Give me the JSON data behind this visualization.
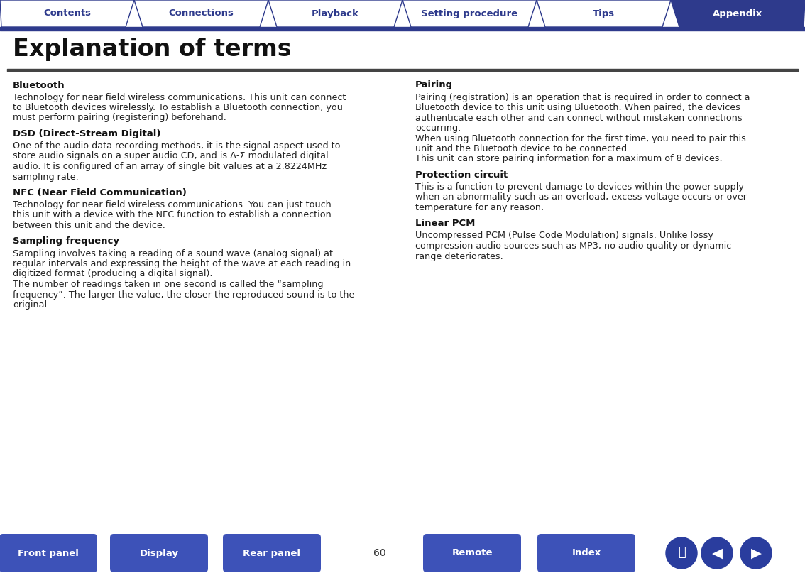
{
  "title": "Explanation of terms",
  "bg_color": "#ffffff",
  "title_color": "#111111",
  "tab_color_inactive_bg": "#ffffff",
  "tab_color_inactive_text": "#2e3a8c",
  "tab_color_active_bg": "#2e3a8c",
  "tab_color_active_text": "#ffffff",
  "tab_border_color": "#2e3a8c",
  "tabs": [
    "Contents",
    "Connections",
    "Playback",
    "Setting procedure",
    "Tips",
    "Appendix"
  ],
  "active_tab": 5,
  "header_line_color": "#444444",
  "bottom_btn_color": "#3d52b8",
  "bottom_btn_text_color": "#ffffff",
  "page_number": "60",
  "left_sections": [
    {
      "heading": "Bluetooth",
      "body": "Technology for near field wireless communications. This unit can connect\nto Bluetooth devices wirelessly. To establish a Bluetooth connection, you\nmust perform pairing (registering) beforehand."
    },
    {
      "heading": "DSD (Direct-Stream Digital)",
      "body": "One of the audio data recording methods, it is the signal aspect used to\nstore audio signals on a super audio CD, and is Δ-Σ modulated digital\naudio. It is configured of an array of single bit values at a 2.8224MHz\nsampling rate."
    },
    {
      "heading": "NFC (Near Field Communication)",
      "body": "Technology for near field wireless communications. You can just touch\nthis unit with a device with the NFC function to establish a connection\nbetween this unit and the device."
    },
    {
      "heading": "Sampling frequency",
      "body": "Sampling involves taking a reading of a sound wave (analog signal) at\nregular intervals and expressing the height of the wave at each reading in\ndigitized format (producing a digital signal).\nThe number of readings taken in one second is called the “sampling\nfrequency”. The larger the value, the closer the reproduced sound is to the\noriginal."
    }
  ],
  "right_sections": [
    {
      "heading": "Pairing",
      "body": "Pairing (registration) is an operation that is required in order to connect a\nBluetooth device to this unit using Bluetooth. When paired, the devices\nauthenticate each other and can connect without mistaken connections\noccurring.\nWhen using Bluetooth connection for the first time, you need to pair this\nunit and the Bluetooth device to be connected.\nThis unit can store pairing information for a maximum of 8 devices."
    },
    {
      "heading": "Protection circuit",
      "body": "This is a function to prevent damage to devices within the power supply\nwhen an abnormality such as an overload, excess voltage occurs or over\ntemperature for any reason."
    },
    {
      "heading": "Linear PCM",
      "body": "Uncompressed PCM (Pulse Code Modulation) signals. Unlike lossy\ncompression audio sources such as MP3, no audio quality or dynamic\nrange deteriorates."
    }
  ],
  "bottom_buttons": [
    "Front panel",
    "Display",
    "Rear panel",
    "Remote",
    "Index"
  ]
}
